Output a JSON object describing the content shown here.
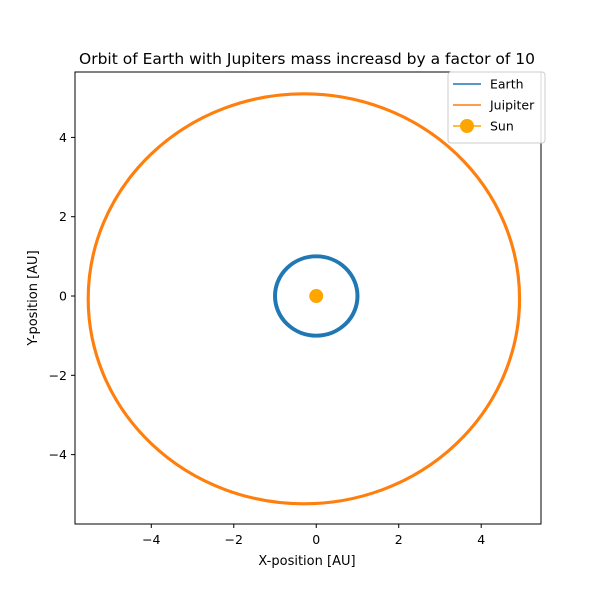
{
  "chart_data": {
    "type": "line",
    "title": "Orbit of Earth with Jupiters mass increasd by a factor of 10",
    "xlabel": "X-position [AU]",
    "ylabel": "Y-position [AU]",
    "xlim": [
      -5.85,
      5.45
    ],
    "ylim": [
      -5.75,
      5.65
    ],
    "xticks": [
      -4,
      -2,
      0,
      2,
      4
    ],
    "yticks": [
      -4,
      -2,
      0,
      2,
      4
    ],
    "tick_labels": {
      "-4": "−4",
      "-2": "−2",
      "0": "0",
      "2": "2",
      "4": "4"
    },
    "grid": false,
    "legend_position": "top-right",
    "series": [
      {
        "name": "Earth",
        "kind": "orbit",
        "color": "#1f77b4",
        "center": [
          0.0,
          0.0
        ],
        "rx": 1.0,
        "ry": 1.0,
        "band": 0.03
      },
      {
        "name": "Juipiter",
        "kind": "orbit",
        "color": "#ff7f0e",
        "center": [
          -0.3,
          -0.07
        ],
        "rx": 5.23,
        "ry": 5.17,
        "band": 0.02
      },
      {
        "name": "Sun",
        "kind": "marker",
        "color": "#ffa500",
        "x": 0.0,
        "y": 0.0
      }
    ]
  }
}
